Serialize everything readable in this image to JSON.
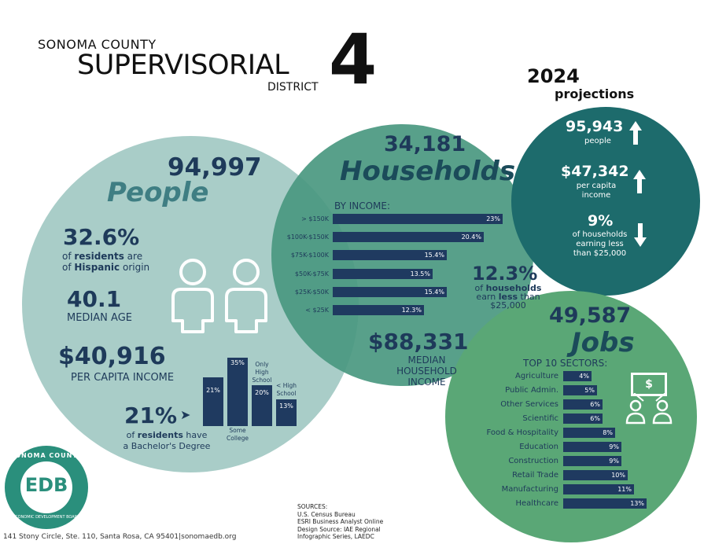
{
  "header": {
    "county": "SONOMA COUNTY",
    "supervisorial": "SUPERVISORIAL",
    "district": "DISTRICT",
    "number": "4"
  },
  "people": {
    "count": "94,997",
    "label": "People",
    "hispanic_pct": "32.6%",
    "hispanic_line1_pre": "of ",
    "hispanic_line1_bold": "residents",
    "hispanic_line1_post": " are",
    "hispanic_line2_pre": "of ",
    "hispanic_line2_bold": "Hispanic",
    "hispanic_line2_post": " origin",
    "median_age": "40.1",
    "median_age_label": "MEDIAN AGE",
    "per_capita": "$40,916",
    "per_capita_label": "PER CAPITA INCOME",
    "bachelor_pct": "21%",
    "bachelor_line1_pre": "of ",
    "bachelor_line1_bold": "residents",
    "bachelor_line1_post": " have",
    "bachelor_line2": "a Bachelor's Degree",
    "edu_bars": [
      {
        "value": "21%",
        "label": ""
      },
      {
        "value": "35%",
        "label": "Some College"
      },
      {
        "value": "20%",
        "label": "Only High School"
      },
      {
        "value": "13%",
        "label": "< High School"
      }
    ]
  },
  "households": {
    "count": "34,181",
    "label": "Households",
    "by_income": "BY INCOME:",
    "bars": [
      {
        "label": "> $150K",
        "value": "23%"
      },
      {
        "label": "$100K-$150K",
        "value": "20.4%"
      },
      {
        "label": "$75K-$100K",
        "value": "15.4%"
      },
      {
        "label": "$50K-$75K",
        "value": "13.5%"
      },
      {
        "label": "$25K-$50K",
        "value": "15.4%"
      },
      {
        "label": "< $25K",
        "value": "12.3%"
      }
    ],
    "low_pct": "12.3%",
    "low_line1_pre": "of ",
    "low_line1_bold": "households",
    "low_line2_pre": "earn ",
    "low_line2_bold": "less",
    "low_line2_post": " than",
    "low_line3": "$25,000",
    "median": "$88,331",
    "median_l1": "MEDIAN",
    "median_l2": "HOUSEHOLD",
    "median_l3": "INCOME"
  },
  "projections": {
    "year": "2024",
    "label": "projections",
    "people_value": "95,943",
    "people_label": "people",
    "income_value": "$47,342",
    "income_l1": "per capita",
    "income_l2": "income",
    "hh_value": "9%",
    "hh_l1": "of households",
    "hh_l2": "earning less",
    "hh_l3": "than $25,000"
  },
  "jobs": {
    "count": "49,587",
    "label": "Jobs",
    "top_label": "TOP 10 SECTORS:",
    "dollar": "$",
    "sectors": [
      {
        "label": "Agriculture",
        "value": "4%"
      },
      {
        "label": "Public Admin.",
        "value": "5%"
      },
      {
        "label": "Other Services",
        "value": "6%"
      },
      {
        "label": "Scientific",
        "value": "6%"
      },
      {
        "label": "Food & Hospitality",
        "value": "8%"
      },
      {
        "label": "Education",
        "value": "9%"
      },
      {
        "label": "Construction",
        "value": "9%"
      },
      {
        "label": "Retail Trade",
        "value": "10%"
      },
      {
        "label": "Manufacturing",
        "value": "11%"
      },
      {
        "label": "Healthcare",
        "value": "13%"
      }
    ]
  },
  "logo": {
    "top_text": "SONOMA COUNTY",
    "mark": "EDB",
    "bottom_text": "ECONOMIC DEVELOPMENT BOARD"
  },
  "footer": {
    "address": "141 Stony Circle, Ste. 110, Santa Rosa, CA 95401|sonomaedb.org",
    "sources_title": "SOURCES:",
    "source1": "U.S. Census Bureau",
    "source2": "ESRI Business Analyst Online",
    "source3": "Design Source: IAE Regional",
    "source4": "Infographic Series, LAEDC"
  },
  "colors": {
    "people_circle": "#a9cdc8",
    "households_circle": "#4e9b87",
    "projections_circle": "#1d6b6c",
    "jobs_circle": "#5aa776",
    "bar": "#1f3a60",
    "navy_text": "#1e3a5a"
  }
}
